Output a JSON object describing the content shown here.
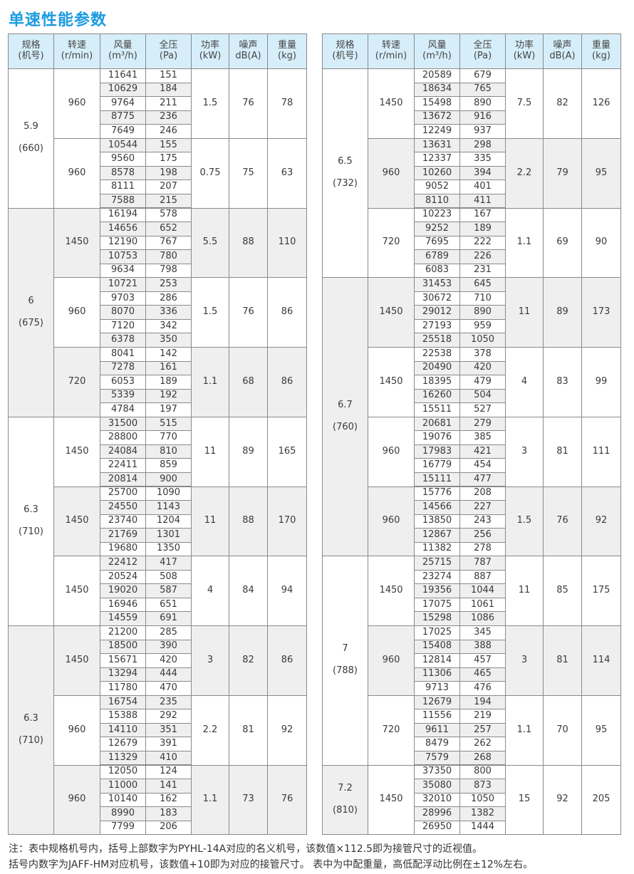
{
  "title": "单速性能参数",
  "colors": {
    "title": "#1c9be0",
    "header_bg": "#d6eef9",
    "shade": "#efefef",
    "border": "#8a8a8a"
  },
  "headers": [
    {
      "line1": "规格",
      "line2": "(机号)"
    },
    {
      "line1": "转速",
      "line2": "(r/min)"
    },
    {
      "line1": "风量",
      "line2": "(m³/h)"
    },
    {
      "line1": "全压",
      "line2": "(Pa)"
    },
    {
      "line1": "功率",
      "line2": "(kW)"
    },
    {
      "line1": "噪声",
      "line2": "dB(A)"
    },
    {
      "line1": "重量",
      "line2": "(kg)"
    }
  ],
  "tables": [
    {
      "groups": [
        {
          "spec": "5.9",
          "code": "(660)",
          "shaded": false,
          "subs": [
            {
              "speed": "960",
              "power": "1.5",
              "noise": "76",
              "weight": "78",
              "shaded": false,
              "flow": [
                "11641",
                "10629",
                "9764",
                "8775",
                "7649"
              ],
              "pressure": [
                "151",
                "184",
                "211",
                "236",
                "246"
              ]
            },
            {
              "speed": "960",
              "power": "0.75",
              "noise": "75",
              "weight": "63",
              "shaded": false,
              "flow": [
                "10544",
                "9560",
                "8578",
                "8111",
                "7588"
              ],
              "pressure": [
                "155",
                "175",
                "198",
                "207",
                "215"
              ]
            }
          ]
        },
        {
          "spec": "6",
          "code": "(675)",
          "shaded": true,
          "subs": [
            {
              "speed": "1450",
              "power": "5.5",
              "noise": "88",
              "weight": "110",
              "shaded": true,
              "flow": [
                "16194",
                "14656",
                "12190",
                "10753",
                "9634"
              ],
              "pressure": [
                "578",
                "652",
                "767",
                "780",
                "798"
              ]
            },
            {
              "speed": "960",
              "power": "1.5",
              "noise": "76",
              "weight": "86",
              "shaded": false,
              "flow": [
                "10721",
                "9703",
                "8070",
                "7120",
                "6378"
              ],
              "pressure": [
                "253",
                "286",
                "336",
                "342",
                "350"
              ]
            },
            {
              "speed": "720",
              "power": "1.1",
              "noise": "68",
              "weight": "86",
              "shaded": true,
              "flow": [
                "8041",
                "7278",
                "6053",
                "5339",
                "4784"
              ],
              "pressure": [
                "142",
                "161",
                "189",
                "192",
                "197"
              ]
            }
          ]
        },
        {
          "spec": "6.3",
          "code": "(710)",
          "shaded": false,
          "subs": [
            {
              "speed": "1450",
              "power": "11",
              "noise": "89",
              "weight": "165",
              "shaded": false,
              "flow": [
                "31500",
                "28800",
                "24084",
                "22411",
                "20814"
              ],
              "pressure": [
                "515",
                "770",
                "810",
                "859",
                "900"
              ]
            },
            {
              "speed": "1450",
              "power": "11",
              "noise": "88",
              "weight": "170",
              "shaded": true,
              "flow": [
                "25700",
                "24550",
                "23740",
                "21769",
                "19680"
              ],
              "pressure": [
                "1090",
                "1143",
                "1204",
                "1301",
                "1350"
              ]
            },
            {
              "speed": "1450",
              "power": "4",
              "noise": "84",
              "weight": "94",
              "shaded": false,
              "flow": [
                "22412",
                "20524",
                "19020",
                "16946",
                "14559"
              ],
              "pressure": [
                "417",
                "508",
                "587",
                "651",
                "691"
              ]
            }
          ]
        },
        {
          "spec": "6.3",
          "code": "(710)",
          "shaded": true,
          "subs": [
            {
              "speed": "1450",
              "power": "3",
              "noise": "82",
              "weight": "86",
              "shaded": true,
              "flow": [
                "21200",
                "18500",
                "15671",
                "13294",
                "11780"
              ],
              "pressure": [
                "285",
                "390",
                "420",
                "444",
                "470"
              ]
            },
            {
              "speed": "960",
              "power": "2.2",
              "noise": "81",
              "weight": "92",
              "shaded": false,
              "flow": [
                "16754",
                "15388",
                "14110",
                "12679",
                "11329"
              ],
              "pressure": [
                "235",
                "292",
                "351",
                "391",
                "410"
              ]
            },
            {
              "speed": "960",
              "power": "1.1",
              "noise": "73",
              "weight": "76",
              "shaded": true,
              "flow": [
                "12050",
                "11000",
                "10140",
                "8990",
                "7799"
              ],
              "pressure": [
                "124",
                "141",
                "162",
                "183",
                "206"
              ]
            }
          ]
        }
      ]
    },
    {
      "groups": [
        {
          "spec": "6.5",
          "code": "(732)",
          "shaded": false,
          "subs": [
            {
              "speed": "1450",
              "power": "7.5",
              "noise": "82",
              "weight": "126",
              "shaded": false,
              "flow": [
                "20589",
                "18634",
                "15498",
                "13672",
                "12249"
              ],
              "pressure": [
                "679",
                "765",
                "890",
                "916",
                "937"
              ]
            },
            {
              "speed": "960",
              "power": "2.2",
              "noise": "79",
              "weight": "95",
              "shaded": true,
              "flow": [
                "13631",
                "12337",
                "10260",
                "9052",
                "8110"
              ],
              "pressure": [
                "298",
                "335",
                "394",
                "401",
                "411"
              ]
            },
            {
              "speed": "720",
              "power": "1.1",
              "noise": "69",
              "weight": "90",
              "shaded": false,
              "flow": [
                "10223",
                "9252",
                "7695",
                "6789",
                "6083"
              ],
              "pressure": [
                "167",
                "189",
                "222",
                "226",
                "231"
              ]
            }
          ]
        },
        {
          "spec": "6.7",
          "code": "(760)",
          "shaded": true,
          "subs": [
            {
              "speed": "1450",
              "power": "11",
              "noise": "89",
              "weight": "173",
              "shaded": true,
              "flow": [
                "31453",
                "30672",
                "29012",
                "27193",
                "25518"
              ],
              "pressure": [
                "645",
                "710",
                "890",
                "959",
                "1050"
              ]
            },
            {
              "speed": "1450",
              "power": "4",
              "noise": "83",
              "weight": "99",
              "shaded": false,
              "flow": [
                "22538",
                "20490",
                "18395",
                "16260",
                "15511"
              ],
              "pressure": [
                "378",
                "420",
                "479",
                "504",
                "527"
              ]
            },
            {
              "speed": "960",
              "power": "3",
              "noise": "81",
              "weight": "111",
              "shaded": false,
              "flow": [
                "20681",
                "19076",
                "17983",
                "16779",
                "15111"
              ],
              "pressure": [
                "279",
                "385",
                "421",
                "454",
                "477"
              ]
            },
            {
              "speed": "960",
              "power": "1.5",
              "noise": "76",
              "weight": "92",
              "shaded": true,
              "flow": [
                "15776",
                "14566",
                "13850",
                "12867",
                "11382"
              ],
              "pressure": [
                "208",
                "227",
                "243",
                "256",
                "278"
              ]
            }
          ]
        },
        {
          "spec": "7",
          "code": "(788)",
          "shaded": false,
          "subs": [
            {
              "speed": "1450",
              "power": "11",
              "noise": "85",
              "weight": "175",
              "shaded": false,
              "flow": [
                "25715",
                "23274",
                "19356",
                "17075",
                "15298"
              ],
              "pressure": [
                "787",
                "887",
                "1044",
                "1061",
                "1086"
              ]
            },
            {
              "speed": "960",
              "power": "3",
              "noise": "81",
              "weight": "114",
              "shaded": true,
              "flow": [
                "17025",
                "15408",
                "12814",
                "11306",
                "9713"
              ],
              "pressure": [
                "345",
                "388",
                "457",
                "465",
                "476"
              ]
            },
            {
              "speed": "720",
              "power": "1.1",
              "noise": "70",
              "weight": "95",
              "shaded": false,
              "flow": [
                "12679",
                "11556",
                "9611",
                "8479",
                "7579"
              ],
              "pressure": [
                "194",
                "219",
                "257",
                "262",
                "268"
              ]
            }
          ]
        },
        {
          "spec": "7.2",
          "code": "(810)",
          "shaded": true,
          "subs": [
            {
              "speed": "1450",
              "power": "15",
              "noise": "92",
              "weight": "205",
              "shaded": false,
              "flow": [
                "37350",
                "35080",
                "32010",
                "28996",
                "26950"
              ],
              "pressure": [
                "800",
                "873",
                "1050",
                "1382",
                "1444"
              ]
            }
          ]
        }
      ]
    }
  ],
  "notes": [
    "注：表中规格机号内，括号上部数字为PYHL-14A对应的名义机号，该数值×112.5即为接管尺寸的近视值。",
    "括号内数字为JAFF-HM对应机号，该数值+10即为对应的接管尺寸。 表中为中配重量，高低配浮动比例在±12%左右。"
  ]
}
